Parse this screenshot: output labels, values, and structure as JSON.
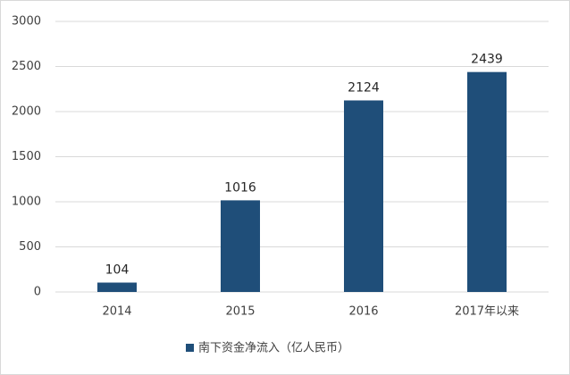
{
  "chart_data": {
    "type": "bar",
    "categories": [
      "2014",
      "2015",
      "2016",
      "2017年以来"
    ],
    "series": [
      {
        "name": "南下资金净流入（亿人民币）",
        "color": "#1f4e79",
        "values": [
          104,
          1016,
          2124,
          2439
        ]
      }
    ],
    "ylim": [
      0,
      3000
    ],
    "yticks": [
      0,
      500,
      1000,
      1500,
      2000,
      2500,
      3000
    ],
    "grid": true,
    "legend": "bottom"
  }
}
